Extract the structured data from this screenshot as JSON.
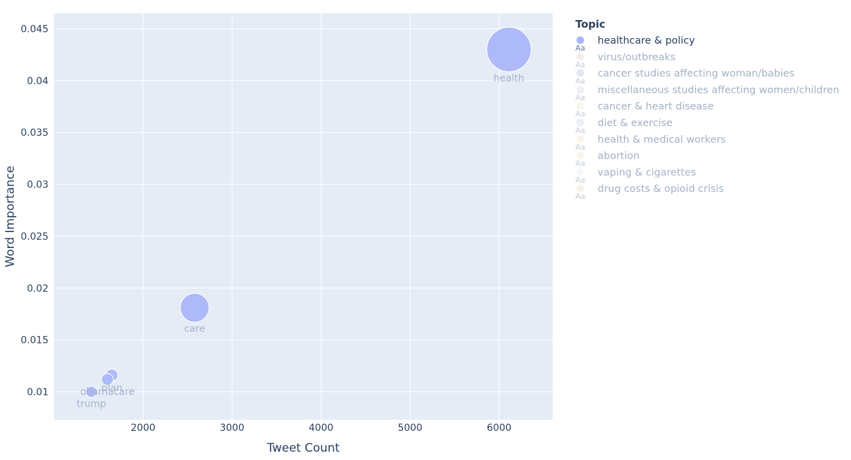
{
  "chart_data": {
    "type": "scatter",
    "xlabel": "Tweet Count",
    "ylabel": "Word Importance",
    "xlim": [
      1000,
      6600
    ],
    "ylim": [
      0.0073,
      0.0465
    ],
    "x_ticks": [
      2000,
      3000,
      4000,
      5000,
      6000
    ],
    "y_ticks": [
      0.01,
      0.015,
      0.02,
      0.025,
      0.03,
      0.035,
      0.04,
      0.045
    ],
    "y_tick_labels": [
      "0.01",
      "0.015",
      "0.02",
      "0.025",
      "0.03",
      "0.035",
      "0.04",
      "0.045"
    ],
    "grid": true,
    "background_color": "#e5ecf6",
    "grid_color": "#ffffff",
    "legend": {
      "title": "Topic",
      "placement": "right",
      "items": [
        {
          "label": "healthcare & policy",
          "color": "#aab6f8",
          "active": true
        },
        {
          "label": "virus/outbreaks",
          "color": "#eed9d4",
          "active": false
        },
        {
          "label": "cancer studies affecting woman/babies",
          "color": "#c8d0e6",
          "active": false
        },
        {
          "label": "miscellaneous studies affecting women/children",
          "color": "#dde0f0",
          "active": false
        },
        {
          "label": "cancer & heart disease",
          "color": "#ecefd8",
          "active": false
        },
        {
          "label": "diet & exercise",
          "color": "#d8e0f0",
          "active": false
        },
        {
          "label": "health & medical workers",
          "color": "#f0ead8",
          "active": false
        },
        {
          "label": "abortion",
          "color": "#f2ecdc",
          "active": false
        },
        {
          "label": "vaping & cigarettes",
          "color": "#eef0f4",
          "active": false
        },
        {
          "label": "drug costs & opioid crisis",
          "color": "#eee8d6",
          "active": false
        }
      ]
    },
    "series": [
      {
        "topic": "healthcare & policy",
        "points": [
          {
            "word": "health",
            "x": 6110,
            "y": 0.043,
            "size": 6110
          },
          {
            "word": "care",
            "x": 2580,
            "y": 0.0181,
            "size": 2580
          },
          {
            "word": "plan",
            "x": 1650,
            "y": 0.0116,
            "size": 1650
          },
          {
            "word": "obamacare",
            "x": 1600,
            "y": 0.0112,
            "size": 1600
          },
          {
            "word": "trump",
            "x": 1420,
            "y": 0.01,
            "size": 1420
          }
        ]
      }
    ]
  }
}
